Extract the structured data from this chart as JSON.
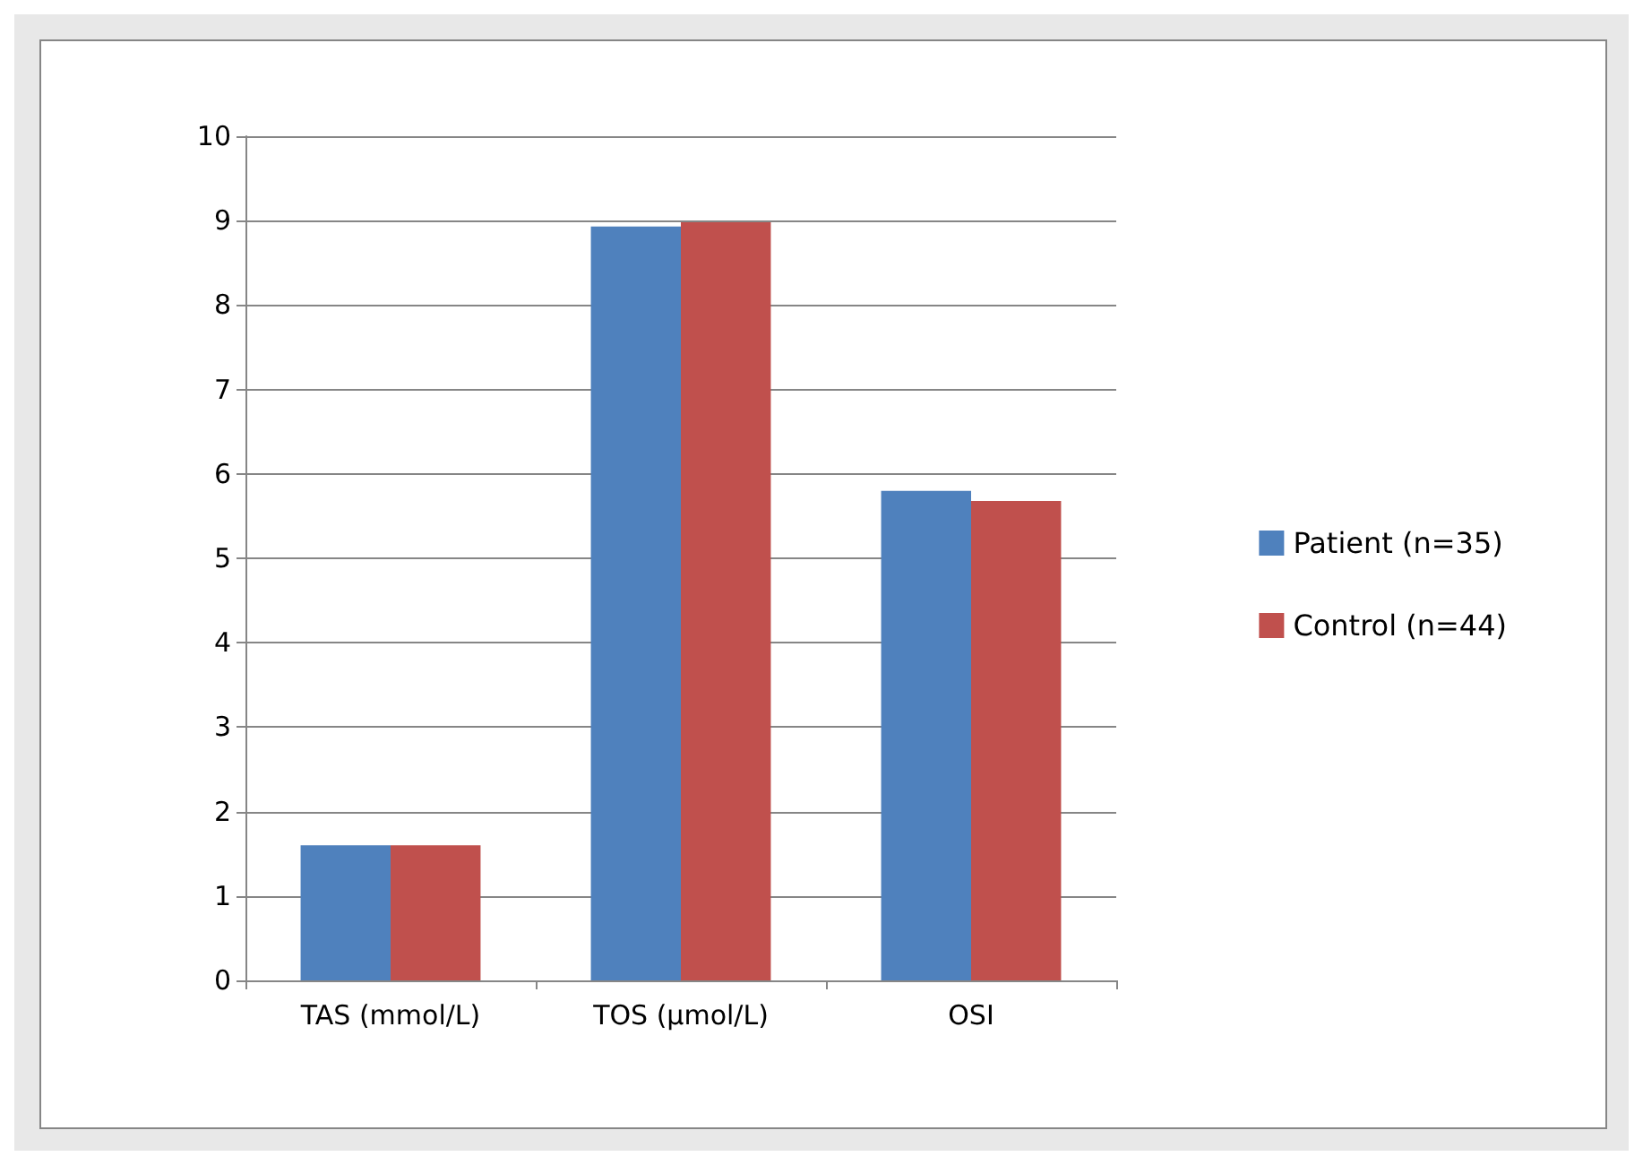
{
  "chart_data": {
    "type": "bar",
    "categories": [
      "TAS (mmol/L)",
      "TOS (µmol/L)",
      "OSI"
    ],
    "series": [
      {
        "name": "Patient (n=35)",
        "color": "#4f81bd",
        "values": [
          1.6,
          8.93,
          5.8
        ]
      },
      {
        "name": "Control (n=44)",
        "color": "#c0504d",
        "values": [
          1.6,
          8.98,
          5.68
        ]
      }
    ],
    "ylim": [
      0,
      10
    ],
    "yticks": [
      0,
      1,
      2,
      3,
      4,
      5,
      6,
      7,
      8,
      9,
      10
    ],
    "grid": "y",
    "legend": "right"
  }
}
